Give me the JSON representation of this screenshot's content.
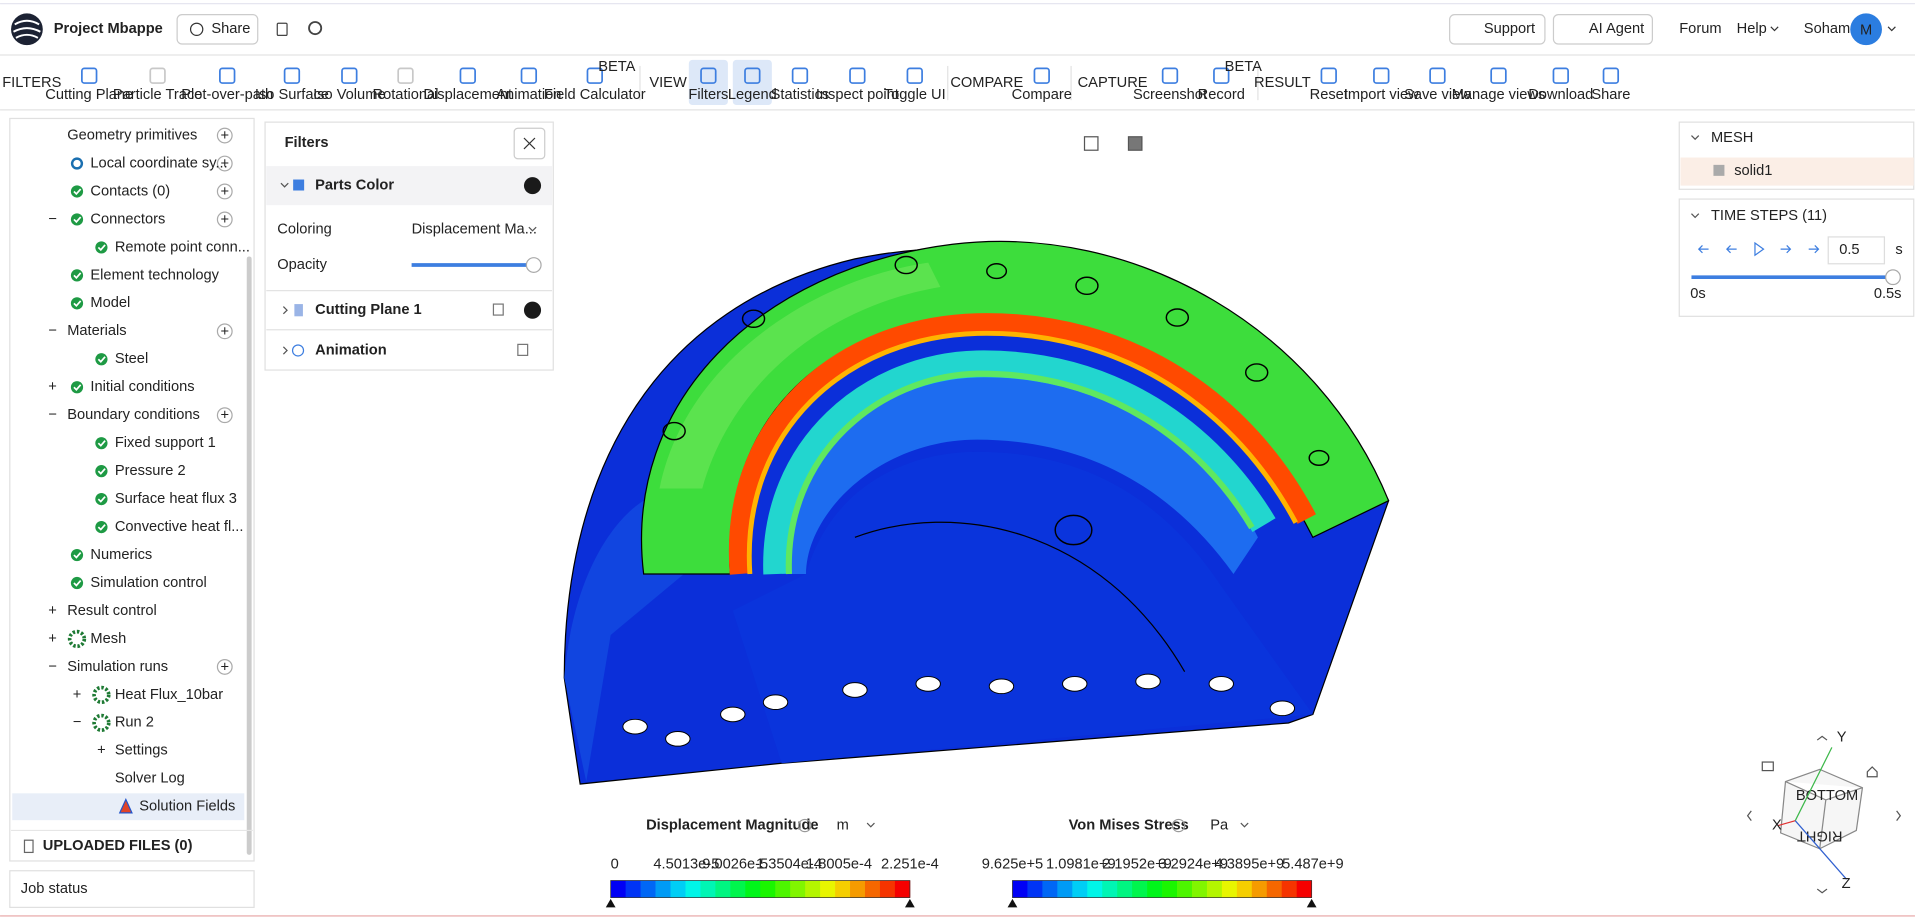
{
  "header": {
    "project": "Project Mbappe",
    "share": "Share",
    "support": "Support",
    "ai_agent": "AI Agent",
    "forum": "Forum",
    "help": "Help",
    "user": "Soham",
    "avatar": "M"
  },
  "toolbar": {
    "beta": "BETA",
    "groups": [
      {
        "label": "FILTERS",
        "items": [
          "Cutting Plane",
          "Particle Trace",
          "Plot-over-path",
          "Iso Surface",
          "Iso Volume",
          "Rotational",
          "Displacement",
          "Animation",
          "Field Calculator"
        ]
      },
      {
        "label": "VIEW",
        "items": [
          "Filters",
          "Legend",
          "Statistics",
          "Inspect point",
          "Toggle UI"
        ]
      },
      {
        "label": "COMPARE",
        "items": [
          "Compare"
        ]
      },
      {
        "label": "CAPTURE",
        "items": [
          "Screenshot",
          "Record"
        ]
      },
      {
        "label": "RESULT",
        "items": [
          "Reset",
          "Import view",
          "Save view",
          "Manage views",
          "Download",
          "Share"
        ]
      }
    ]
  },
  "tree": {
    "items": [
      "Geometry primitives",
      "Local coordinate sy...",
      "Contacts (0)",
      "Connectors",
      "Remote point conn...",
      "Element technology",
      "Model",
      "Materials",
      "Steel",
      "Initial conditions",
      "Boundary conditions",
      "Fixed support 1",
      "Pressure 2",
      "Surface heat flux 3",
      "Convective heat fl...",
      "Numerics",
      "Simulation control",
      "Result control",
      "Mesh",
      "Simulation runs",
      "Heat Flux_10bar",
      "Run 2",
      "Settings",
      "Solver Log",
      "Solution Fields"
    ],
    "uploaded": "UPLOADED FILES (0)",
    "job_status": "Job status"
  },
  "filters": {
    "title": "Filters",
    "parts_color": "Parts Color",
    "coloring_label": "Coloring",
    "coloring_value": "Displacement Ma...",
    "opacity": "Opacity",
    "cutting_plane": "Cutting Plane 1",
    "animation": "Animation"
  },
  "mesh": {
    "title": "MESH",
    "item": "solid1"
  },
  "time_steps": {
    "title": "TIME STEPS (11)",
    "value": "0.5",
    "unit": "s",
    "start": "0s",
    "end": "0.5s"
  },
  "gizmo": {
    "top": "BOTTOM",
    "side": "RIGHT",
    "y": "Y",
    "x": "X",
    "z": "Z"
  },
  "legends": [
    {
      "title": "Displacement Magnitude",
      "unit": "m",
      "ticks": [
        "0",
        "4.5013e-5",
        "9.0026e-5",
        "1.3504e-4",
        "1.8005e-4",
        "2.251e-4"
      ]
    },
    {
      "title": "Von Mises Stress",
      "unit": "Pa",
      "ticks": [
        "9.625e+5",
        "1.0981e+9",
        "2.1952e+9",
        "3.2924e+9",
        "4.3895e+9",
        "5.487e+9"
      ]
    }
  ]
}
